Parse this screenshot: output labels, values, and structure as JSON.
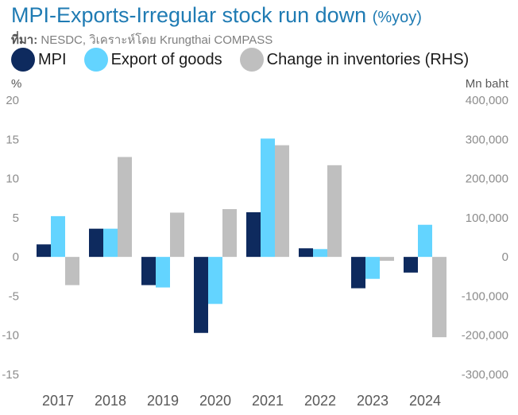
{
  "title": "MPI-Exports-Irregular stock run down",
  "title_unit": "(%yoy)",
  "source_label": "ที่มา:",
  "source_text": "NESDC, วิเคราะห์โดย Krungthai COMPASS",
  "chart_data": {
    "type": "bar",
    "categories": [
      "2017",
      "2018",
      "2019",
      "2020",
      "2021",
      "2022",
      "2023",
      "2024"
    ],
    "series": [
      {
        "name": "MPI",
        "axis": "left",
        "color": "#0e2a5e",
        "values": [
          1.6,
          3.6,
          -3.6,
          -9.7,
          5.7,
          1.1,
          -4.0,
          -2.0
        ]
      },
      {
        "name": "Export of goods",
        "axis": "left",
        "color": "#63d4ff",
        "values": [
          5.2,
          3.6,
          -3.9,
          -6.0,
          15.1,
          1.0,
          -2.8,
          4.1
        ]
      },
      {
        "name": "Change in inventories (RHS)",
        "axis": "right",
        "color": "#bfbfbf",
        "values": [
          -72000,
          255000,
          113000,
          122000,
          285000,
          234000,
          -10000,
          -205000
        ]
      }
    ],
    "yleft": {
      "unit": "%",
      "ylim": [
        -15,
        20
      ],
      "ticks": [
        "20",
        "15",
        "10",
        "5",
        "0",
        "-5",
        "-10",
        "-15"
      ]
    },
    "yright": {
      "unit": "Mn baht",
      "ylim": [
        -300000,
        400000
      ],
      "ticks": [
        "400,000",
        "300,000",
        "200,000",
        "100,000",
        "0",
        "-100,000",
        "-200,000",
        "-300,000"
      ]
    },
    "legend_position": "top-left",
    "grid": false
  }
}
